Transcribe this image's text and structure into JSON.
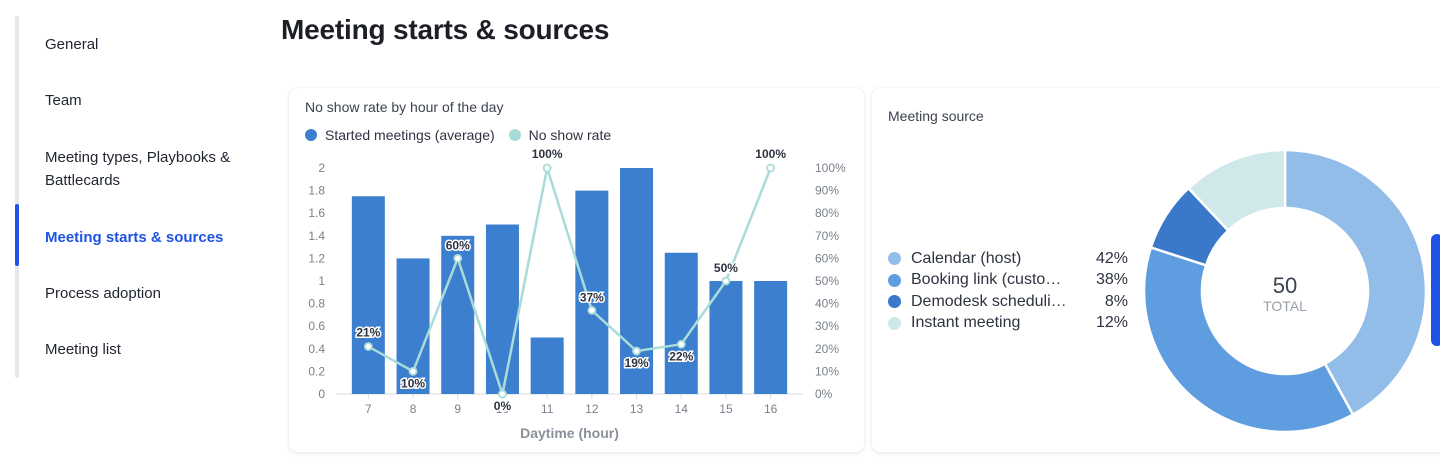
{
  "sidebar": {
    "items": [
      {
        "label": "General"
      },
      {
        "label": "Team"
      },
      {
        "label": "Meeting types, Playbooks & Battlecards"
      },
      {
        "label": "Meeting starts & sources"
      },
      {
        "label": "Process adoption"
      },
      {
        "label": "Meeting list"
      }
    ],
    "active_index": 3
  },
  "page": {
    "title": "Meeting starts & sources"
  },
  "colors": {
    "accent": "#1e53e5",
    "bar": "#3d7fcf",
    "no_show_line": "#a9dcd8",
    "calendar": "#93bde9",
    "booking_link": "#5e9ddf",
    "demodesk": "#3a78c9",
    "instant": "#cfe8e9"
  },
  "chart_data": [
    {
      "type": "bar",
      "title": "No show rate by hour of the day",
      "xlabel": "Daytime (hour)",
      "categories": [
        "7",
        "8",
        "9",
        "10",
        "11",
        "12",
        "13",
        "14",
        "15",
        "16"
      ],
      "ylim": [
        0,
        2
      ],
      "y_ticks": [
        "0",
        "0.2",
        "0.4",
        "0.6",
        "0.8",
        "1",
        "1.2",
        "1.4",
        "1.6",
        "1.8",
        "2"
      ],
      "y2lim": [
        0,
        100
      ],
      "y2_ticks": [
        "0%",
        "10%",
        "20%",
        "30%",
        "40%",
        "50%",
        "60%",
        "70%",
        "80%",
        "90%",
        "100%"
      ],
      "legend_position": "top-left",
      "grid": false,
      "series": [
        {
          "name": "Started meetings (average)",
          "type": "bar",
          "axis": "left",
          "values": [
            1.75,
            1.2,
            1.4,
            1.5,
            0.5,
            1.8,
            2.0,
            1.25,
            1.0,
            1.0
          ]
        },
        {
          "name": "No show rate",
          "type": "line",
          "axis": "right",
          "values": [
            21,
            10,
            60,
            0,
            100,
            37,
            19,
            22,
            50,
            100
          ],
          "labels": [
            "21%",
            "10%",
            "60%",
            "0%",
            "100%",
            "37%",
            "19%",
            "22%",
            "50%",
            "100%"
          ]
        }
      ]
    },
    {
      "type": "pie",
      "title": "Meeting source",
      "center_value": "50",
      "center_label": "TOTAL",
      "legend_position": "left",
      "slices": [
        {
          "label": "Calendar (host)",
          "value": 42,
          "pct": "42%",
          "color": "#93bde9"
        },
        {
          "label": "Booking link (customer)",
          "display_label": "Booking link (custo…",
          "value": 38,
          "pct": "38%",
          "color": "#5e9ddf"
        },
        {
          "label": "Demodesk scheduling",
          "display_label": "Demodesk scheduli…",
          "value": 8,
          "pct": "8%",
          "color": "#3a78c9"
        },
        {
          "label": "Instant meeting",
          "value": 12,
          "pct": "12%",
          "color": "#cfe8e9"
        }
      ]
    }
  ]
}
